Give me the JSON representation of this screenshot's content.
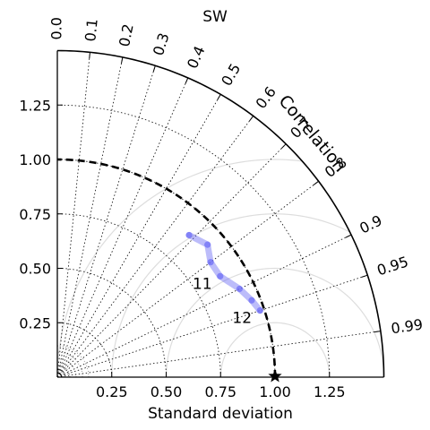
{
  "chart_data": {
    "type": "taylor-diagram",
    "title": "SW",
    "xlabel": "Standard deviation",
    "correlation_label": "Correlation",
    "std_range": [
      0,
      1.5
    ],
    "std_ticks": [
      0.25,
      0.5,
      0.75,
      1.0,
      1.25
    ],
    "std_tick_labels": [
      "0.25",
      "0.50",
      "0.75",
      "1.00",
      "1.25"
    ],
    "correlation_ticks": [
      0.0,
      0.1,
      0.2,
      0.3,
      0.4,
      0.5,
      0.6,
      0.7,
      0.8,
      0.9,
      0.95,
      0.99
    ],
    "correlation_tick_labels": [
      "0.0",
      "0.1",
      "0.2",
      "0.3",
      "0.4",
      "0.5",
      "0.6",
      "0.7",
      "0.8",
      "0.9",
      "0.95",
      "0.99"
    ],
    "reference_std": 1.0,
    "rms_contours": [
      0.25,
      0.5,
      0.75,
      1.0
    ],
    "series": [
      {
        "color": "#6a6af5",
        "points": [
          {
            "std": 0.89,
            "corr": 0.68
          },
          {
            "std": 0.92,
            "corr": 0.75
          },
          {
            "std": 0.88,
            "corr": 0.8
          },
          {
            "std": 0.88,
            "corr": 0.85
          },
          {
            "std": 0.93,
            "corr": 0.9
          },
          {
            "std": 0.96,
            "corr": 0.93
          },
          {
            "std": 0.98,
            "corr": 0.95
          }
        ],
        "labels": [
          {
            "text": "11",
            "index": 3
          },
          {
            "text": "12",
            "index": 6
          }
        ]
      }
    ],
    "colors": {
      "reference_arc": "#000000",
      "contour": "#dddddd",
      "grid": "#000000"
    }
  }
}
